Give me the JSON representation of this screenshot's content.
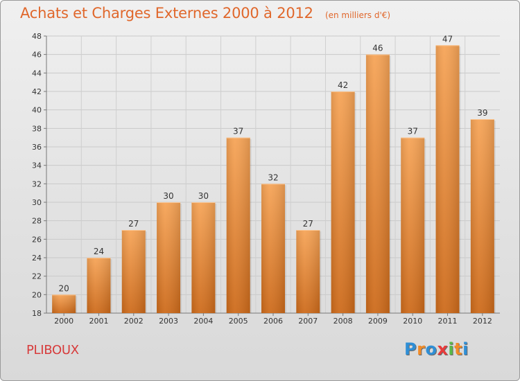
{
  "title": "Achats et Charges Externes 2000 à 2012",
  "subtitle": "(en milliers d'€)",
  "location_label": "PLIBOUX",
  "logo": {
    "letters": [
      "P",
      "r",
      "o",
      "x",
      "i",
      "t",
      "i"
    ],
    "colors": [
      "#2f8fd6",
      "#f28c28",
      "#2f8fd6",
      "#e83b3b",
      "#58b947",
      "#f28c28",
      "#2f8fd6"
    ]
  },
  "colors": {
    "bar": "#f08a2e",
    "title": "#e0672b",
    "location": "#d73b3b"
  },
  "chart_data": {
    "type": "bar",
    "title": "Achats et Charges Externes 2000 à 2012",
    "subtitle": "(en milliers d'€)",
    "categories": [
      "2000",
      "2001",
      "2002",
      "2003",
      "2004",
      "2005",
      "2006",
      "2007",
      "2008",
      "2009",
      "2010",
      "2011",
      "2012"
    ],
    "values": [
      20,
      24,
      27,
      30,
      30,
      37,
      32,
      27,
      42,
      46,
      37,
      47,
      39
    ],
    "ylim": [
      18,
      48
    ],
    "yticks": [
      18,
      20,
      22,
      24,
      26,
      28,
      30,
      32,
      34,
      36,
      38,
      40,
      42,
      44,
      46,
      48
    ],
    "xlabel": "",
    "ylabel": "",
    "grid": true,
    "data_labels": true
  }
}
